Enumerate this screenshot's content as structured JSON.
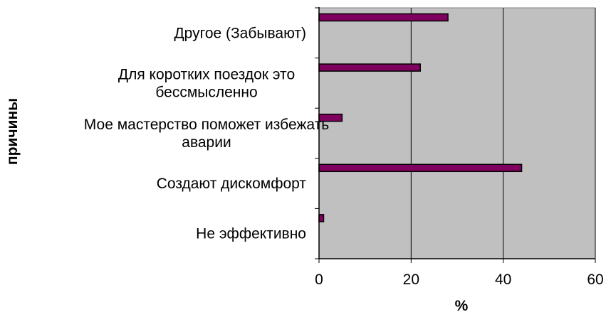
{
  "chart_data": {
    "type": "bar",
    "orientation": "horizontal",
    "categories": [
      [
        "Другое (Забывают)"
      ],
      [
        "Для коротких поездок это",
        "бессмысленно"
      ],
      [
        "Мое мастерство поможет избежать",
        "аварии"
      ],
      [
        "Создают дискомфорт"
      ],
      [
        "Не эффективно"
      ]
    ],
    "values": [
      28,
      22,
      5,
      44,
      1
    ],
    "xlabel": "%",
    "ylabel": "причины",
    "xlim": [
      0,
      60
    ],
    "xticks": [
      0,
      20,
      40,
      60
    ],
    "grid": "vertical",
    "plot_background": "#c0c0c0",
    "bar_color": "#800060"
  }
}
